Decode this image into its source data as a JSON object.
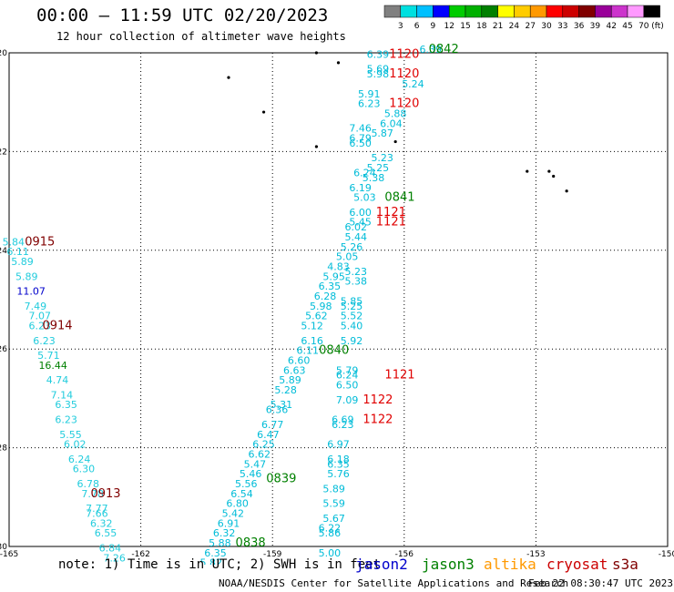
{
  "header": {
    "title": "00:00 – 11:59 UTC 02/20/2023",
    "subtitle": "12 hour collection of altimeter wave heights"
  },
  "colorbar": {
    "unit_label": "(ft)",
    "bins": [
      {
        "label": "3",
        "color": "#808080"
      },
      {
        "label": "6",
        "color": "#00e0e0"
      },
      {
        "label": "9",
        "color": "#00c0ff"
      },
      {
        "label": "12",
        "color": "#0000ff"
      },
      {
        "label": "15",
        "color": "#00cc00"
      },
      {
        "label": "18",
        "color": "#00b000"
      },
      {
        "label": "21",
        "color": "#008000"
      },
      {
        "label": "24",
        "color": "#ffff00"
      },
      {
        "label": "27",
        "color": "#ffcc00"
      },
      {
        "label": "30",
        "color": "#ff9900"
      },
      {
        "label": "33",
        "color": "#ff0000"
      },
      {
        "label": "36",
        "color": "#cc0000"
      },
      {
        "label": "39",
        "color": "#800000"
      },
      {
        "label": "42",
        "color": "#990099"
      },
      {
        "label": "45",
        "color": "#cc33cc"
      },
      {
        "label": "70",
        "color": "#ff99ff"
      },
      {
        "label": "",
        "color": "#000000"
      }
    ]
  },
  "map": {
    "lon_ticks": [
      "-165",
      "-162",
      "-159",
      "-156",
      "-153",
      "-150"
    ],
    "lat_ticks": [
      "-20",
      "-22",
      "-24",
      "-26",
      "-28",
      "-30"
    ],
    "grid": "dotted",
    "colors": {
      "cyan": "#00bcd8",
      "teal": "#22ccdd",
      "blue": "#0000cc",
      "red": "#e00000",
      "green": "#008000",
      "dkred": "#800000"
    },
    "track_labels": [
      {
        "text": "0842",
        "lon": -155.1,
        "lat": -20.0,
        "color": "green"
      },
      {
        "text": "1120",
        "lon": -156.0,
        "lat": -20.1,
        "color": "red"
      },
      {
        "text": "1120",
        "lon": -156.0,
        "lat": -20.5,
        "color": "red"
      },
      {
        "text": "1120",
        "lon": -156.0,
        "lat": -21.1,
        "color": "red"
      },
      {
        "text": "0841",
        "lon": -156.1,
        "lat": -23.0,
        "color": "green"
      },
      {
        "text": "1121",
        "lon": -156.3,
        "lat": -23.3,
        "color": "red"
      },
      {
        "text": "1121",
        "lon": -156.3,
        "lat": -23.5,
        "color": "red"
      },
      {
        "text": "0915",
        "lon": -164.3,
        "lat": -23.9,
        "color": "dkred"
      },
      {
        "text": "0914",
        "lon": -163.9,
        "lat": -25.6,
        "color": "dkred"
      },
      {
        "text": "0840",
        "lon": -157.6,
        "lat": -26.1,
        "color": "green"
      },
      {
        "text": "1121",
        "lon": -156.1,
        "lat": -26.6,
        "color": "red"
      },
      {
        "text": "1122",
        "lon": -156.6,
        "lat": -27.1,
        "color": "red"
      },
      {
        "text": "1122",
        "lon": -156.6,
        "lat": -27.5,
        "color": "red"
      },
      {
        "text": "0839",
        "lon": -158.8,
        "lat": -28.7,
        "color": "green"
      },
      {
        "text": "0913",
        "lon": -162.8,
        "lat": -29.0,
        "color": "dkred"
      },
      {
        "text": "0838",
        "lon": -159.5,
        "lat": -30.0,
        "color": "green"
      }
    ],
    "swh_labels": [
      {
        "text": "6.39",
        "lon": -155.4,
        "lat": -20.0,
        "color": "cyan"
      },
      {
        "text": "6.39",
        "lon": -156.6,
        "lat": -20.1,
        "color": "cyan"
      },
      {
        "text": "5.69",
        "lon": -156.6,
        "lat": -20.4,
        "color": "cyan"
      },
      {
        "text": "5.98",
        "lon": -156.6,
        "lat": -20.5,
        "color": "cyan"
      },
      {
        "text": "5.24",
        "lon": -155.8,
        "lat": -20.7,
        "color": "cyan"
      },
      {
        "text": "5.91",
        "lon": -156.8,
        "lat": -20.9,
        "color": "cyan"
      },
      {
        "text": "6.23",
        "lon": -156.8,
        "lat": -21.1,
        "color": "cyan"
      },
      {
        "text": "5.88",
        "lon": -156.2,
        "lat": -21.3,
        "color": "cyan"
      },
      {
        "text": "6.04",
        "lon": -156.3,
        "lat": -21.5,
        "color": "cyan"
      },
      {
        "text": "7.46",
        "lon": -157.0,
        "lat": -21.6,
        "color": "cyan"
      },
      {
        "text": "5.87",
        "lon": -156.5,
        "lat": -21.7,
        "color": "cyan"
      },
      {
        "text": "6.79",
        "lon": -157.0,
        "lat": -21.8,
        "color": "cyan"
      },
      {
        "text": "6.50",
        "lon": -157.0,
        "lat": -21.9,
        "color": "cyan"
      },
      {
        "text": "5.23",
        "lon": -156.5,
        "lat": -22.2,
        "color": "cyan"
      },
      {
        "text": "5.25",
        "lon": -156.6,
        "lat": -22.4,
        "color": "cyan"
      },
      {
        "text": "6.24",
        "lon": -156.9,
        "lat": -22.5,
        "color": "cyan"
      },
      {
        "text": "5.38",
        "lon": -156.7,
        "lat": -22.6,
        "color": "cyan"
      },
      {
        "text": "6.19",
        "lon": -157.0,
        "lat": -22.8,
        "color": "cyan"
      },
      {
        "text": "5.03",
        "lon": -156.9,
        "lat": -23.0,
        "color": "cyan"
      },
      {
        "text": "6.00",
        "lon": -157.0,
        "lat": -23.3,
        "color": "cyan"
      },
      {
        "text": "5.45",
        "lon": -157.0,
        "lat": -23.5,
        "color": "cyan"
      },
      {
        "text": "6.02",
        "lon": -157.1,
        "lat": -23.6,
        "color": "cyan"
      },
      {
        "text": "5.44",
        "lon": -157.1,
        "lat": -23.8,
        "color": "cyan"
      },
      {
        "text": "5.26",
        "lon": -157.2,
        "lat": -24.0,
        "color": "cyan"
      },
      {
        "text": "5.05",
        "lon": -157.3,
        "lat": -24.2,
        "color": "cyan"
      },
      {
        "text": "4.83",
        "lon": -157.5,
        "lat": -24.4,
        "color": "cyan"
      },
      {
        "text": "5.23",
        "lon": -157.1,
        "lat": -24.5,
        "color": "cyan"
      },
      {
        "text": "5.95",
        "lon": -157.6,
        "lat": -24.6,
        "color": "cyan"
      },
      {
        "text": "5.38",
        "lon": -157.1,
        "lat": -24.7,
        "color": "cyan"
      },
      {
        "text": "6.35",
        "lon": -157.7,
        "lat": -24.8,
        "color": "cyan"
      },
      {
        "text": "6.28",
        "lon": -157.8,
        "lat": -25.0,
        "color": "cyan"
      },
      {
        "text": "5.85",
        "lon": -157.2,
        "lat": -25.1,
        "color": "cyan"
      },
      {
        "text": "5.98",
        "lon": -157.9,
        "lat": -25.2,
        "color": "cyan"
      },
      {
        "text": "5.25",
        "lon": -157.2,
        "lat": -25.2,
        "color": "cyan"
      },
      {
        "text": "5.62",
        "lon": -158.0,
        "lat": -25.4,
        "color": "cyan"
      },
      {
        "text": "5.52",
        "lon": -157.2,
        "lat": -25.4,
        "color": "cyan"
      },
      {
        "text": "5.12",
        "lon": -158.1,
        "lat": -25.6,
        "color": "cyan"
      },
      {
        "text": "5.40",
        "lon": -157.2,
        "lat": -25.6,
        "color": "cyan"
      },
      {
        "text": "6.16",
        "lon": -158.1,
        "lat": -25.9,
        "color": "cyan"
      },
      {
        "text": "5.92",
        "lon": -157.2,
        "lat": -25.9,
        "color": "cyan"
      },
      {
        "text": "6.11",
        "lon": -158.2,
        "lat": -26.1,
        "color": "cyan"
      },
      {
        "text": "6.60",
        "lon": -158.4,
        "lat": -26.3,
        "color": "cyan"
      },
      {
        "text": "6.63",
        "lon": -158.5,
        "lat": -26.5,
        "color": "cyan"
      },
      {
        "text": "5.79",
        "lon": -157.3,
        "lat": -26.5,
        "color": "cyan"
      },
      {
        "text": "6.24",
        "lon": -157.3,
        "lat": -26.6,
        "color": "cyan"
      },
      {
        "text": "5.89",
        "lon": -158.6,
        "lat": -26.7,
        "color": "cyan"
      },
      {
        "text": "6.50",
        "lon": -157.3,
        "lat": -26.8,
        "color": "cyan"
      },
      {
        "text": "5.28",
        "lon": -158.7,
        "lat": -26.9,
        "color": "cyan"
      },
      {
        "text": "7.09",
        "lon": -157.3,
        "lat": -27.1,
        "color": "cyan"
      },
      {
        "text": "5.31",
        "lon": -158.8,
        "lat": -27.2,
        "color": "cyan"
      },
      {
        "text": "6.36",
        "lon": -158.9,
        "lat": -27.3,
        "color": "cyan"
      },
      {
        "text": "6.69",
        "lon": -157.4,
        "lat": -27.5,
        "color": "cyan"
      },
      {
        "text": "6.23",
        "lon": -157.4,
        "lat": -27.6,
        "color": "cyan"
      },
      {
        "text": "6.77",
        "lon": -159.0,
        "lat": -27.6,
        "color": "cyan"
      },
      {
        "text": "6.47",
        "lon": -159.1,
        "lat": -27.8,
        "color": "cyan"
      },
      {
        "text": "6.97",
        "lon": -157.5,
        "lat": -28.0,
        "color": "cyan"
      },
      {
        "text": "6.25",
        "lon": -159.2,
        "lat": -28.0,
        "color": "cyan"
      },
      {
        "text": "6.62",
        "lon": -159.3,
        "lat": -28.2,
        "color": "cyan"
      },
      {
        "text": "6.18",
        "lon": -157.5,
        "lat": -28.3,
        "color": "cyan"
      },
      {
        "text": "5.47",
        "lon": -159.4,
        "lat": -28.4,
        "color": "cyan"
      },
      {
        "text": "6.35",
        "lon": -157.5,
        "lat": -28.4,
        "color": "cyan"
      },
      {
        "text": "5.46",
        "lon": -159.5,
        "lat": -28.6,
        "color": "cyan"
      },
      {
        "text": "5.76",
        "lon": -157.5,
        "lat": -28.6,
        "color": "cyan"
      },
      {
        "text": "5.56",
        "lon": -159.6,
        "lat": -28.8,
        "color": "cyan"
      },
      {
        "text": "5.89",
        "lon": -157.6,
        "lat": -28.9,
        "color": "cyan"
      },
      {
        "text": "6.54",
        "lon": -159.7,
        "lat": -29.0,
        "color": "cyan"
      },
      {
        "text": "6.80",
        "lon": -159.8,
        "lat": -29.2,
        "color": "cyan"
      },
      {
        "text": "5.59",
        "lon": -157.6,
        "lat": -29.2,
        "color": "cyan"
      },
      {
        "text": "5.42",
        "lon": -159.9,
        "lat": -29.4,
        "color": "cyan"
      },
      {
        "text": "5.67",
        "lon": -157.6,
        "lat": -29.5,
        "color": "cyan"
      },
      {
        "text": "6.91",
        "lon": -160.0,
        "lat": -29.6,
        "color": "cyan"
      },
      {
        "text": "6.22",
        "lon": -157.7,
        "lat": -29.7,
        "color": "cyan"
      },
      {
        "text": "6.32",
        "lon": -160.1,
        "lat": -29.8,
        "color": "cyan"
      },
      {
        "text": "5.86",
        "lon": -157.7,
        "lat": -29.8,
        "color": "cyan"
      },
      {
        "text": "5.88",
        "lon": -160.2,
        "lat": -30.0,
        "color": "cyan"
      },
      {
        "text": "6.35",
        "lon": -160.3,
        "lat": -30.2,
        "color": "cyan"
      },
      {
        "text": "5.00",
        "lon": -157.7,
        "lat": -30.2,
        "color": "cyan"
      },
      {
        "text": "5.82",
        "lon": -160.4,
        "lat": -30.4,
        "color": "cyan"
      },
      {
        "text": "5.84",
        "lon": -164.9,
        "lat": -23.9,
        "color": "teal"
      },
      {
        "text": "6.11",
        "lon": -164.8,
        "lat": -24.1,
        "color": "teal"
      },
      {
        "text": "5.89",
        "lon": -164.7,
        "lat": -24.3,
        "color": "teal"
      },
      {
        "text": "5.89",
        "lon": -164.6,
        "lat": -24.6,
        "color": "teal"
      },
      {
        "text": "11.07",
        "lon": -164.5,
        "lat": -24.9,
        "color": "blue"
      },
      {
        "text": "7.49",
        "lon": -164.4,
        "lat": -25.2,
        "color": "teal"
      },
      {
        "text": "7.07",
        "lon": -164.3,
        "lat": -25.4,
        "color": "teal"
      },
      {
        "text": "6.23",
        "lon": -164.3,
        "lat": -25.6,
        "color": "teal"
      },
      {
        "text": "6.23",
        "lon": -164.2,
        "lat": -25.9,
        "color": "teal"
      },
      {
        "text": "5.71",
        "lon": -164.1,
        "lat": -26.2,
        "color": "teal"
      },
      {
        "text": "16.44",
        "lon": -164.0,
        "lat": -26.4,
        "color": "green"
      },
      {
        "text": "4.74",
        "lon": -163.9,
        "lat": -26.7,
        "color": "teal"
      },
      {
        "text": "7.14",
        "lon": -163.8,
        "lat": -27.0,
        "color": "teal"
      },
      {
        "text": "6.35",
        "lon": -163.7,
        "lat": -27.2,
        "color": "teal"
      },
      {
        "text": "6.23",
        "lon": -163.7,
        "lat": -27.5,
        "color": "teal"
      },
      {
        "text": "5.55",
        "lon": -163.6,
        "lat": -27.8,
        "color": "teal"
      },
      {
        "text": "6.02",
        "lon": -163.5,
        "lat": -28.0,
        "color": "teal"
      },
      {
        "text": "6.24",
        "lon": -163.4,
        "lat": -28.3,
        "color": "teal"
      },
      {
        "text": "6.30",
        "lon": -163.3,
        "lat": -28.5,
        "color": "teal"
      },
      {
        "text": "6.78",
        "lon": -163.2,
        "lat": -28.8,
        "color": "teal"
      },
      {
        "text": "7.78",
        "lon": -163.1,
        "lat": -29.0,
        "color": "teal"
      },
      {
        "text": "7.77",
        "lon": -163.0,
        "lat": -29.3,
        "color": "teal"
      },
      {
        "text": "7.66",
        "lon": -163.0,
        "lat": -29.4,
        "color": "teal"
      },
      {
        "text": "6.32",
        "lon": -162.9,
        "lat": -29.6,
        "color": "teal"
      },
      {
        "text": "6.55",
        "lon": -162.8,
        "lat": -29.8,
        "color": "teal"
      },
      {
        "text": "6.84",
        "lon": -162.7,
        "lat": -30.1,
        "color": "teal"
      },
      {
        "text": "7.26",
        "lon": -162.6,
        "lat": -30.3,
        "color": "teal"
      }
    ],
    "islands": [
      {
        "lon": -160.0,
        "lat": -20.5
      },
      {
        "lon": -159.2,
        "lat": -21.2
      },
      {
        "lon": -158.0,
        "lat": -21.9
      },
      {
        "lon": -156.2,
        "lat": -21.8
      },
      {
        "lon": -153.2,
        "lat": -22.4
      },
      {
        "lon": -152.6,
        "lat": -22.5
      },
      {
        "lon": -152.7,
        "lat": -22.4
      },
      {
        "lon": -152.3,
        "lat": -22.8
      },
      {
        "lon": -157.5,
        "lat": -20.2
      },
      {
        "lon": -158.0,
        "lat": -20.0
      }
    ]
  },
  "footer": {
    "note": "note: 1) Time is in UTC; 2) SWH is in feet",
    "satellites": [
      {
        "name": "jason2",
        "color": "#0000cc"
      },
      {
        "name": "jason3",
        "color": "#008000"
      },
      {
        "name": "altika",
        "color": "#ff9900"
      },
      {
        "name": "cryosat",
        "color": "#cc0000"
      },
      {
        "name": "s3a",
        "color": "#800000"
      }
    ],
    "credit": "NOAA/NESDIS Center for Satellite Applications and Research",
    "timestamp": "Feb 22 08:30:47 UTC 2023"
  }
}
